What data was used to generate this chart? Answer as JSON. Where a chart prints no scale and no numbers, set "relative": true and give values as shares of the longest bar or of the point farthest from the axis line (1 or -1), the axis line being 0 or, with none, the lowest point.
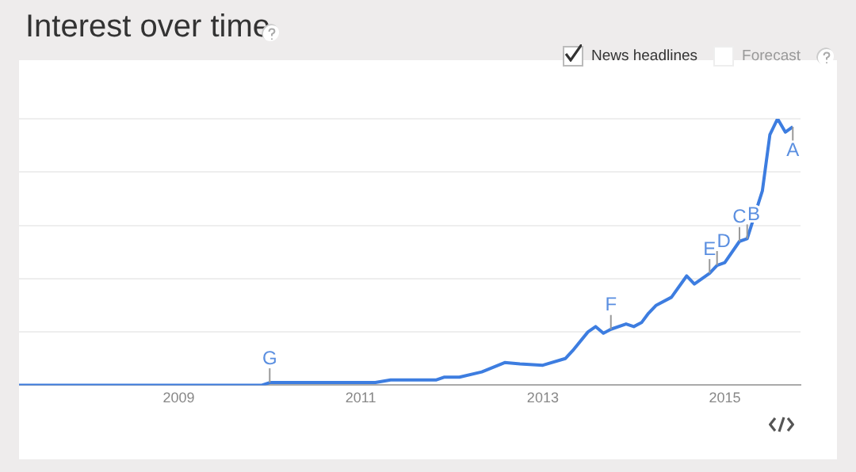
{
  "chart_data": {
    "type": "line",
    "title": "Interest over time",
    "relative": true,
    "grid": "y",
    "legend": false,
    "marker": "none",
    "x": [
      "2007-04",
      "2009-12",
      "2010-01",
      "2011-03",
      "2011-05",
      "2011-11",
      "2011-12",
      "2012-02",
      "2012-05",
      "2012-08",
      "2012-10",
      "2013-01",
      "2013-04",
      "2013-05",
      "2013-07",
      "2013-08",
      "2013-09",
      "2013-10",
      "2013-12",
      "2014-01",
      "2014-02",
      "2014-03",
      "2014-04",
      "2014-06",
      "2014-08",
      "2014-09",
      "2014-11",
      "2014-12",
      "2015-01",
      "2015-03",
      "2015-04",
      "2015-06",
      "2015-07",
      "2015-08",
      "2015-09",
      "2015-10"
    ],
    "xlim": [
      "2007-04",
      "2015-11"
    ],
    "xticks": [
      "2009",
      "2011",
      "2013",
      "2015"
    ],
    "series": [
      {
        "color": "#3d7de0",
        "values": [
          0,
          0,
          0.01,
          0.01,
          0.02,
          0.02,
          0.03,
          0.03,
          0.05,
          0.085,
          0.08,
          0.075,
          0.1,
          0.13,
          0.2,
          0.22,
          0.195,
          0.21,
          0.23,
          0.22,
          0.235,
          0.27,
          0.3,
          0.33,
          0.41,
          0.38,
          0.42,
          0.45,
          0.46,
          0.54,
          0.55,
          0.73,
          0.94,
          1,
          0.95,
          0.97
        ]
      }
    ],
    "annotations": [
      "News headlines",
      "Forecast",
      {
        "text": "G",
        "x": "2010-01",
        "y": 0.01
      },
      {
        "text": "F",
        "x": "2013-10",
        "y": 0.21
      },
      {
        "text": "E",
        "x": "2014-11",
        "y": 0.42
      },
      {
        "text": "D",
        "x": "2014-12",
        "y": 0.45
      },
      {
        "text": "C",
        "x": "2015-03",
        "y": 0.54
      },
      {
        "text": "B",
        "x": "2015-04",
        "y": 0.55
      },
      {
        "text": "A",
        "x": "2015-10",
        "y": 0.97
      }
    ]
  }
}
